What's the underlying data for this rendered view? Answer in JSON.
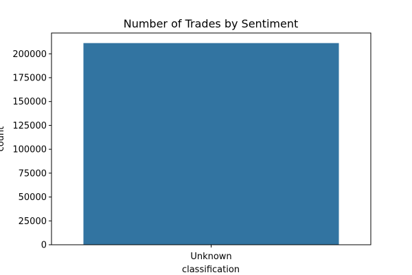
{
  "chart_data": {
    "type": "bar",
    "title": "Number of Trades by Sentiment",
    "xlabel": "classification",
    "ylabel": "count",
    "categories": [
      "Unknown"
    ],
    "values": [
      211224
    ],
    "ylim": [
      0,
      221785
    ],
    "yticks": [
      0,
      25000,
      50000,
      75000,
      100000,
      125000,
      150000,
      175000,
      200000
    ],
    "grid": false,
    "bar_color": "#3274a1"
  }
}
